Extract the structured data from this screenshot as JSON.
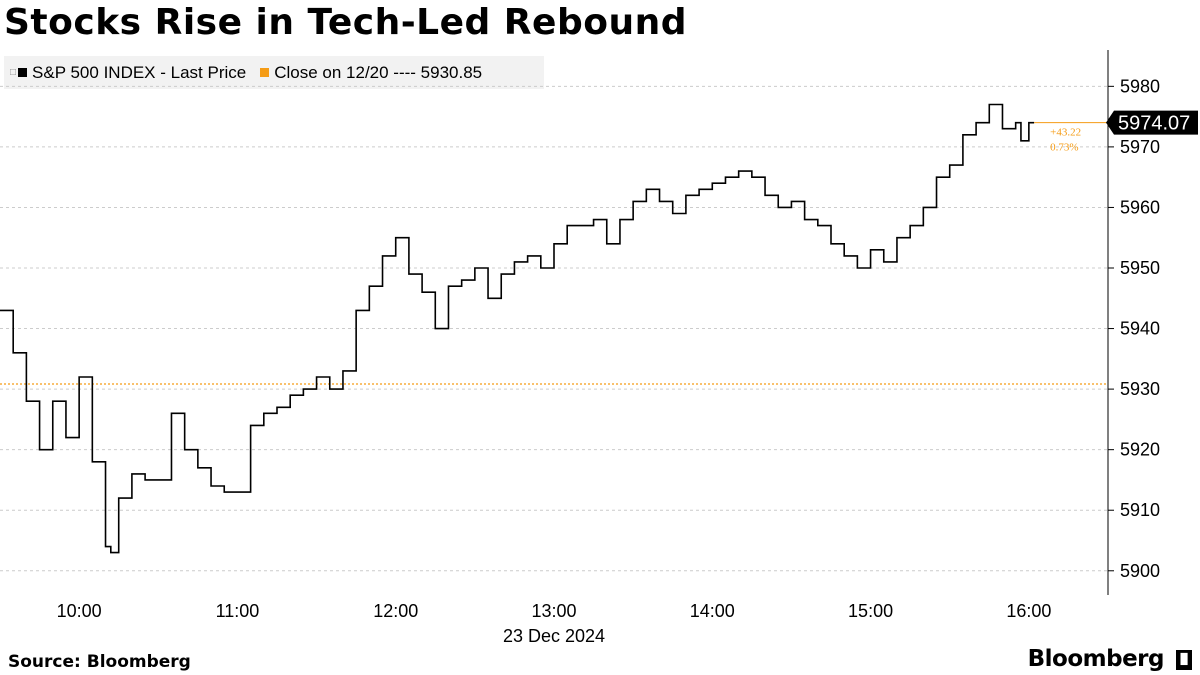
{
  "chart_data": {
    "type": "line",
    "title": "Stocks Rise in Tech-Led Rebound",
    "xlabel": "23 Dec 2024",
    "ylabel": "",
    "x_ticks": [
      "10:00",
      "11:00",
      "12:00",
      "13:00",
      "14:00",
      "15:00",
      "16:00"
    ],
    "y_ticks": [
      5900,
      5910,
      5920,
      5930,
      5940,
      5950,
      5960,
      5970,
      5980
    ],
    "ylim": [
      5896,
      5986
    ],
    "xlim": [
      "09:30",
      "16:30"
    ],
    "grid": "horizontal dashed",
    "legend_position": "top-left",
    "series": [
      {
        "name": "S&P 500 INDEX - Last Price",
        "color": "#000000",
        "x": [
          "09:30",
          "09:35",
          "09:40",
          "09:45",
          "09:50",
          "09:55",
          "10:00",
          "10:05",
          "10:10",
          "10:12",
          "10:15",
          "10:20",
          "10:25",
          "10:30",
          "10:35",
          "10:40",
          "10:45",
          "10:50",
          "10:55",
          "11:00",
          "11:05",
          "11:10",
          "11:15",
          "11:20",
          "11:25",
          "11:30",
          "11:35",
          "11:40",
          "11:45",
          "11:50",
          "11:55",
          "12:00",
          "12:05",
          "12:10",
          "12:15",
          "12:20",
          "12:25",
          "12:30",
          "12:35",
          "12:40",
          "12:45",
          "12:50",
          "12:55",
          "13:00",
          "13:05",
          "13:10",
          "13:15",
          "13:20",
          "13:25",
          "13:30",
          "13:35",
          "13:40",
          "13:45",
          "13:50",
          "13:55",
          "14:00",
          "14:05",
          "14:10",
          "14:15",
          "14:20",
          "14:25",
          "14:30",
          "14:35",
          "14:40",
          "14:45",
          "14:50",
          "14:55",
          "15:00",
          "15:05",
          "15:10",
          "15:15",
          "15:20",
          "15:25",
          "15:30",
          "15:35",
          "15:40",
          "15:45",
          "15:50",
          "15:55",
          "15:57",
          "16:00",
          "16:02"
        ],
        "values": [
          5943,
          5936,
          5928,
          5920,
          5928,
          5922,
          5932,
          5918,
          5904,
          5903,
          5912,
          5916,
          5915,
          5915,
          5926,
          5920,
          5917,
          5914,
          5913,
          5913,
          5924,
          5926,
          5927,
          5929,
          5930,
          5932,
          5930,
          5933,
          5943,
          5947,
          5952,
          5955,
          5949,
          5946,
          5940,
          5947,
          5948,
          5950,
          5945,
          5949,
          5951,
          5952,
          5950,
          5954,
          5957,
          5957,
          5958,
          5954,
          5958,
          5961,
          5963,
          5961,
          5959,
          5962,
          5963,
          5964,
          5965,
          5966,
          5965,
          5962,
          5960,
          5961,
          5958,
          5957,
          5954,
          5952,
          5950,
          5953,
          5951,
          5955,
          5957,
          5960,
          5965,
          5967,
          5972,
          5974,
          5977,
          5973,
          5974,
          5971,
          5974,
          5974
        ]
      },
      {
        "name": "Close on 12/20 ---- 5930.85",
        "color": "#f59c16",
        "type": "reference",
        "value": 5930.85
      }
    ],
    "last_price_label": "5974.07",
    "change_label": "+43.22",
    "change_pct_label": "0.73%"
  },
  "legend": {
    "series1_label": "S&P 500 INDEX - Last Price",
    "series2_label": "Close on 12/20 ---- 5930.85"
  },
  "footer": {
    "source": "Source: Bloomberg",
    "brand": "Bloomberg"
  },
  "colors": {
    "line": "#000000",
    "reference": "#f59c16",
    "grid": "#cccccc",
    "legend_bg": "#f2f2f2"
  }
}
